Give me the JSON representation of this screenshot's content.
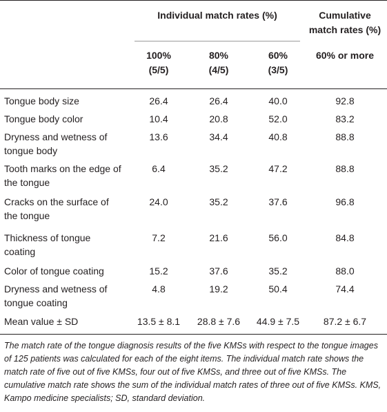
{
  "header": {
    "group_individual": "Individual match rates (%)",
    "group_cumulative_line1": "Cumulative",
    "group_cumulative_line2": "match rates (%)",
    "sub": [
      {
        "line1": "100%",
        "line2": "(5/5)"
      },
      {
        "line1": "80%",
        "line2": "(4/5)"
      },
      {
        "line1": "60%",
        "line2": "(3/5)"
      },
      {
        "line1": "60% or more",
        "line2": ""
      }
    ]
  },
  "rows": [
    {
      "label": "Tongue body size",
      "v": [
        "26.4",
        "26.4",
        "40.0",
        "92.8"
      ]
    },
    {
      "label": "Tongue body color",
      "v": [
        "10.4",
        "20.8",
        "52.0",
        "83.2"
      ]
    },
    {
      "label": "Dryness and wetness of tongue body",
      "v": [
        "13.6",
        "34.4",
        "40.8",
        "88.8"
      ]
    },
    {
      "label": "Tooth marks on the edge of the tongue",
      "v": [
        "6.4",
        "35.2",
        "47.2",
        "88.8"
      ]
    },
    {
      "label": "Cracks on the surface of the tongue",
      "v": [
        "24.0",
        "35.2",
        "37.6",
        "96.8"
      ]
    },
    {
      "label": "Thickness of tongue coating",
      "v": [
        "7.2",
        "21.6",
        "56.0",
        "84.8"
      ]
    },
    {
      "label": "Color of tongue coating",
      "v": [
        "15.2",
        "37.6",
        "35.2",
        "88.0"
      ]
    },
    {
      "label": "Dryness and wetness of tongue coating",
      "v": [
        "4.8",
        "19.2",
        "50.4",
        "74.4"
      ]
    },
    {
      "label": "Mean value ± SD",
      "v": [
        "13.5 ± 8.1",
        "28.8 ± 7.6",
        "44.9 ± 7.5",
        "87.2 ± 6.7"
      ]
    }
  ],
  "footnote": "The match rate of the tongue diagnosis results of the five KMSs with respect to the tongue images of 125 patients was calculated for each of the eight items. The individual match rate shows the match rate of five out of five KMSs, four out of five KMSs, and three out of five KMSs. The cumulative match rate shows the sum of the individual match rates of three out of five KMSs. KMS, Kampo medicine specialists; SD, standard deviation."
}
